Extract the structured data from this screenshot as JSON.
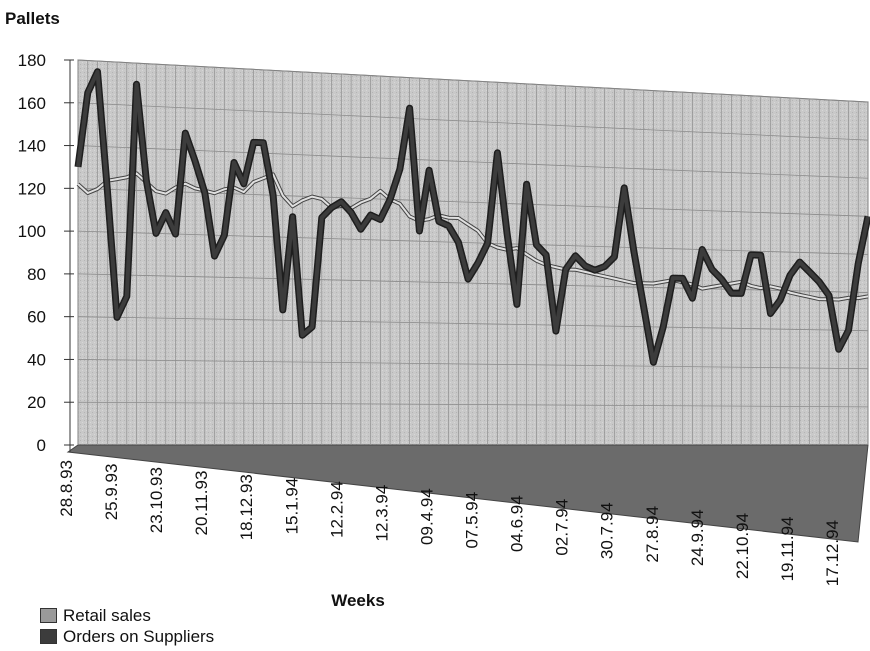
{
  "chart_data": {
    "type": "line",
    "ylabel": "Pallets",
    "xlabel": "Weeks",
    "ylim": [
      0,
      180
    ],
    "yticks": [
      0,
      20,
      40,
      60,
      80,
      100,
      120,
      140,
      160,
      180
    ],
    "grid": true,
    "legend_position": "bottom-left",
    "x_tick_labels": [
      "28.8.93",
      "25.9.93",
      "23.10.93",
      "20.11.93",
      "18.12.93",
      "15.1.94",
      "12.2.94",
      "12.3.94",
      "09.4.94",
      "07.5.94",
      "04.6.94",
      "02.7.94",
      "30.7.94",
      "27.8.94",
      "24.9.94",
      "22.10.94",
      "19.11.94",
      "17.12.94"
    ],
    "series": [
      {
        "name": "Retail sales",
        "color": "#9a9a9a",
        "values": [
          122,
          118,
          120,
          124,
          125,
          126,
          128,
          124,
          120,
          119,
          122,
          124,
          122,
          121,
          120,
          122,
          123,
          121,
          126,
          128,
          130,
          120,
          115,
          118,
          120,
          119,
          115,
          116,
          115,
          118,
          120,
          124,
          120,
          118,
          112,
          110,
          111,
          113,
          112,
          112,
          109,
          106,
          100,
          98,
          97,
          98,
          95,
          92,
          90,
          89,
          88,
          88,
          87,
          86,
          85,
          84,
          83,
          82,
          82,
          82,
          83,
          84,
          83,
          82,
          80,
          81,
          82,
          83,
          84,
          82,
          81,
          82,
          81,
          79,
          78,
          77,
          76,
          76,
          76,
          77,
          77,
          78
        ]
      },
      {
        "name": "Orders on Suppliers",
        "color": "#3c3c3c",
        "values": [
          130,
          165,
          175,
          120,
          60,
          70,
          170,
          125,
          100,
          110,
          100,
          148,
          135,
          120,
          90,
          100,
          135,
          125,
          145,
          145,
          120,
          65,
          110,
          53,
          57,
          110,
          115,
          118,
          113,
          105,
          112,
          110,
          120,
          135,
          165,
          105,
          135,
          110,
          108,
          100,
          82,
          90,
          100,
          145,
          105,
          70,
          130,
          100,
          95,
          57,
          88,
          95,
          90,
          88,
          90,
          95,
          130,
          98,
          70,
          42,
          60,
          85,
          85,
          75,
          100,
          90,
          85,
          78,
          78,
          98,
          98,
          68,
          75,
          88,
          95,
          90,
          85,
          78,
          50,
          60,
          95,
          120
        ]
      }
    ]
  }
}
